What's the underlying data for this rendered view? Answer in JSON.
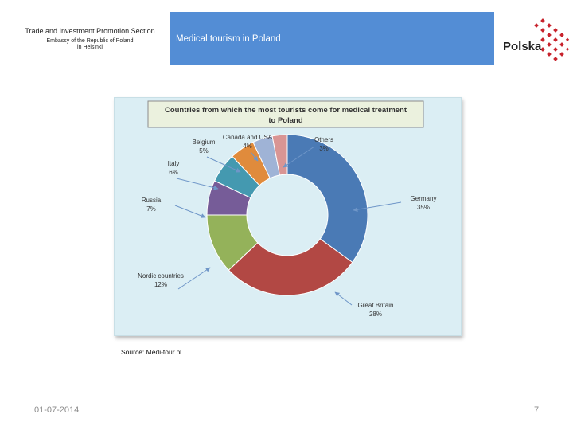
{
  "header": {
    "section_line1": "Trade and Investment Promotion Section",
    "section_line2": "Embassy of the Republic of Poland",
    "section_line3": "in Helsinki",
    "title": "Medical tourism in Poland",
    "logo_text": "Polska"
  },
  "chart_data": {
    "type": "pie",
    "style": "donut",
    "title_line1": "Countries from which the most tourists come for medical treatment",
    "title_line2": "to Poland",
    "categories": [
      "Germany",
      "Great Britain",
      "Nordic countries",
      "Russia",
      "Italy",
      "Belgium",
      "Canada and USA",
      "Others"
    ],
    "values": [
      35,
      28,
      12,
      7,
      6,
      5,
      4,
      3
    ],
    "value_labels": [
      "35%",
      "28%",
      "12%",
      "7%",
      "6%",
      "5%",
      "4%",
      "3%"
    ],
    "colors": [
      "#4a7ab5",
      "#b24844",
      "#94b25a",
      "#765c98",
      "#4499b0",
      "#e08b3c",
      "#9fb3d6",
      "#d99594"
    ]
  },
  "source": "Source: Medi-tour.pl",
  "footer": {
    "date": "01-07-2014",
    "page": "7"
  }
}
